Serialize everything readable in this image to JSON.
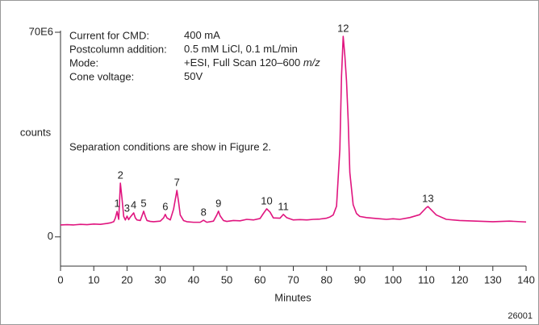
{
  "chart_data": {
    "type": "line",
    "y_label": "counts",
    "x_label": "Minutes",
    "figure_id": "26001",
    "conditions": [
      {
        "label": "Current for CMD:",
        "value": "400 mA"
      },
      {
        "label": "Postcolumn addition:",
        "value": "0.5 mM LiCl, 0.1 mL/min"
      },
      {
        "label": "Mode:",
        "value": "+ESI, Full Scan 120–600",
        "value_em": "m/z"
      },
      {
        "label": "Cone voltage:",
        "value": "50V"
      }
    ],
    "note": "Separation conditions are show in Figure 2.",
    "xlim": [
      0,
      140
    ],
    "xticks": [
      0,
      10,
      20,
      30,
      40,
      50,
      60,
      70,
      80,
      90,
      100,
      110,
      120,
      130,
      140
    ],
    "ylim": [
      -10000000,
      70000000
    ],
    "yticks": [
      0,
      {
        "value": 70000000,
        "label": "70E6"
      }
    ],
    "color": "#e0157f",
    "x": [
      0,
      2,
      4,
      6,
      8,
      10,
      12,
      14,
      15,
      16,
      16.5,
      17,
      17.5,
      18,
      18.5,
      19,
      19.5,
      20,
      20.5,
      21,
      21.5,
      22,
      22.5,
      23,
      24,
      25,
      25.5,
      26,
      27,
      28,
      30,
      31,
      31.5,
      32,
      33,
      34,
      35,
      35.5,
      36,
      37,
      38,
      40,
      42,
      43,
      44,
      46,
      47,
      47.5,
      48,
      49,
      50,
      52,
      54,
      56,
      58,
      60,
      61,
      62,
      63,
      64,
      66,
      67,
      68,
      70,
      72,
      74,
      76,
      78,
      80,
      81,
      82,
      83,
      84,
      84.5,
      85,
      85.5,
      86,
      86.5,
      87,
      88,
      89,
      90,
      92,
      95,
      98,
      100,
      102,
      105,
      108,
      110,
      110.5,
      111,
      113,
      116,
      120,
      125,
      130,
      135,
      140
    ],
    "values": [
      4100000,
      4200000,
      4100000,
      4300000,
      4200000,
      4400000,
      4300000,
      4600000,
      4800000,
      5200000,
      6500000,
      8700000,
      6000000,
      18400000,
      13000000,
      7000000,
      5800000,
      7100000,
      5900000,
      6800000,
      7500000,
      8200000,
      6500000,
      5800000,
      5600000,
      8800000,
      7000000,
      5600000,
      5300000,
      5200000,
      5400000,
      6500000,
      7700000,
      6500000,
      5800000,
      9500000,
      15900000,
      12000000,
      7500000,
      5600000,
      5200000,
      5000000,
      5000000,
      5700000,
      5000000,
      5400000,
      7500000,
      8800000,
      7200000,
      5600000,
      5300000,
      5600000,
      5500000,
      6000000,
      5800000,
      6300000,
      8000000,
      9600000,
      8500000,
      6500000,
      6400000,
      7700000,
      6600000,
      5800000,
      5900000,
      5800000,
      6000000,
      6100000,
      6400000,
      6800000,
      7500000,
      10500000,
      30000000,
      55000000,
      68600000,
      62000000,
      53400000,
      40000000,
      22000000,
      11000000,
      8000000,
      7000000,
      6600000,
      6300000,
      6000000,
      6200000,
      6000000,
      6600000,
      7600000,
      10000000,
      10400000,
      9800000,
      7500000,
      6000000,
      5600000,
      5400000,
      5200000,
      5400000,
      5100000
    ],
    "peaks": [
      {
        "label": "1",
        "x": 17
      },
      {
        "label": "2",
        "x": 18
      },
      {
        "label": "3",
        "x": 20
      },
      {
        "label": "4",
        "x": 22
      },
      {
        "label": "5",
        "x": 25
      },
      {
        "label": "6",
        "x": 31.5
      },
      {
        "label": "7",
        "x": 35
      },
      {
        "label": "8",
        "x": 43
      },
      {
        "label": "9",
        "x": 47.5
      },
      {
        "label": "10",
        "x": 62
      },
      {
        "label": "11",
        "x": 67
      },
      {
        "label": "12",
        "x": 85
      },
      {
        "label": "13",
        "x": 110.5
      }
    ]
  }
}
